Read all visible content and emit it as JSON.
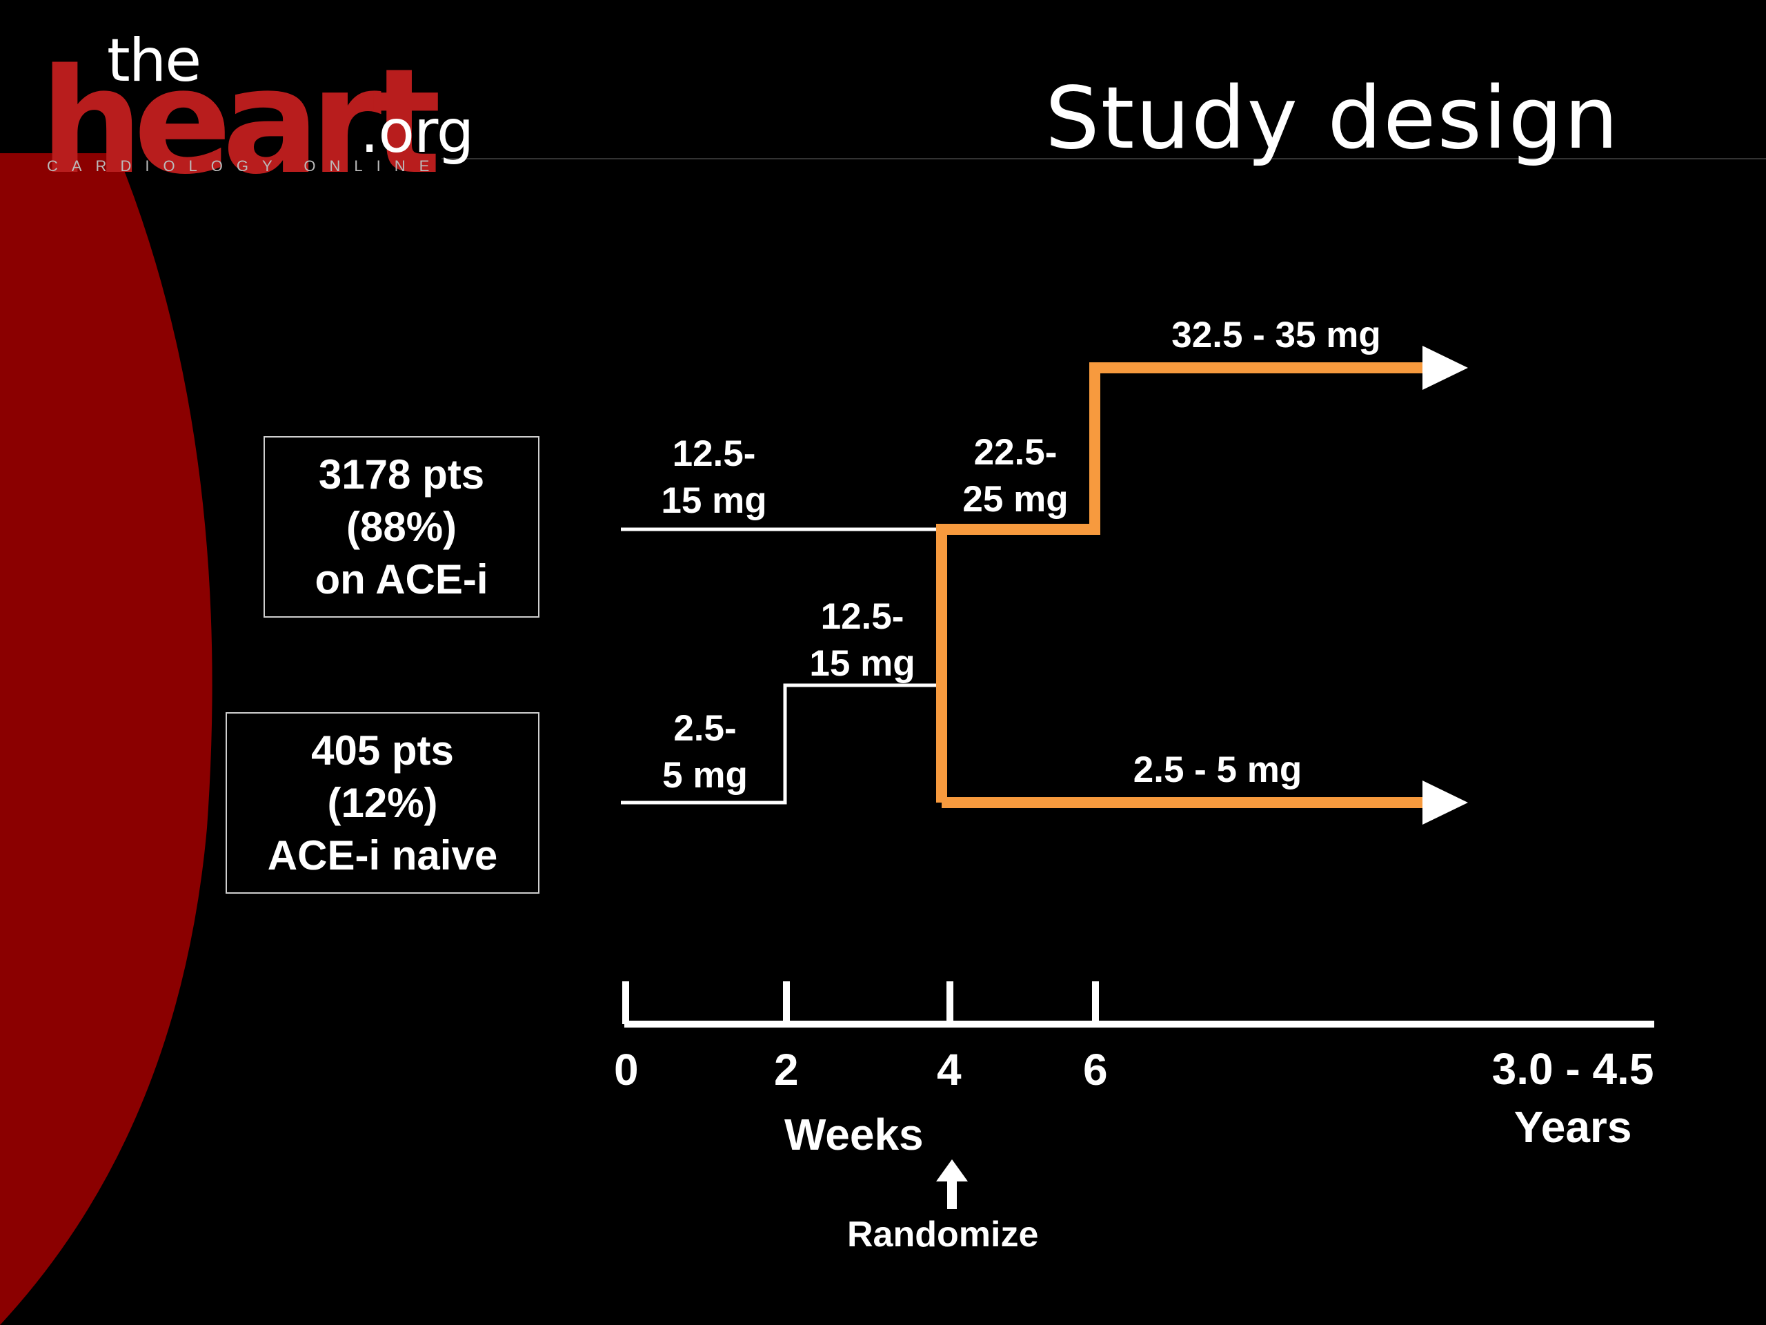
{
  "logo": {
    "the": "the",
    "heart": "heart",
    "org": ".org",
    "tagline": "CARDIOLOGY ONLINE"
  },
  "title": "Study design",
  "groups": [
    {
      "line1": "3178 pts",
      "line2": "(88%)",
      "line3": "on ACE-i"
    },
    {
      "line1": "405 pts",
      "line2": "(12%)",
      "line3": "ACE-i naive"
    }
  ],
  "doses": {
    "ace_run_in": {
      "line1": "12.5-",
      "line2": "15 mg"
    },
    "ace_step": {
      "line1": "22.5-",
      "line2": "25 mg"
    },
    "ace_final": "32.5 - 35 mg",
    "naive_start": {
      "line1": "2.5-",
      "line2": "5 mg"
    },
    "naive_step": {
      "line1": "12.5-",
      "line2": "15 mg"
    },
    "low_dose": "2.5 - 5 mg"
  },
  "timeline": {
    "ticks": [
      "0",
      "2",
      "4",
      "6"
    ],
    "end_tick": {
      "line1": "3.0 - 4.5",
      "line2": "Years"
    },
    "unit": "Weeks",
    "randomize": "Randomize"
  },
  "colors": {
    "background": "#000000",
    "brand_red": "#b81d1d",
    "arc_red": "#8b0000",
    "arm_orange": "#f79a3e",
    "line_white": "#ffffff"
  }
}
